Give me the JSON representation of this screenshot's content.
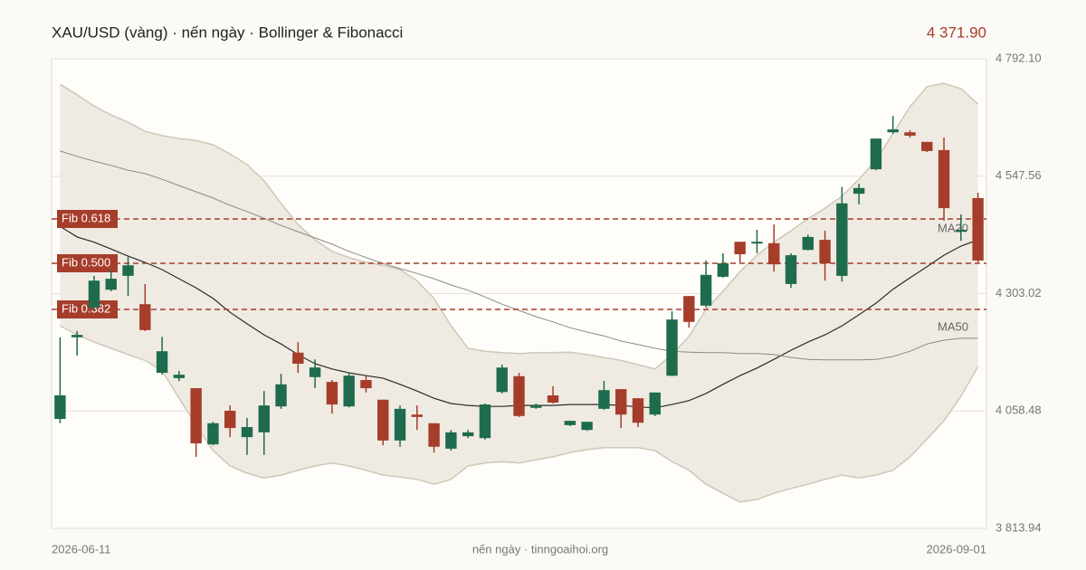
{
  "chart_data": {
    "type": "candlestick",
    "title": "XAU/USD (vàng) · nến ngày · Bollinger & Fibonacci",
    "last_price": "4 371.90",
    "footer": "nến ngày · tinngoaihoi.org",
    "categories": [
      "2026-06-11",
      null,
      null,
      null,
      null,
      null,
      null,
      null,
      null,
      null,
      null,
      null,
      null,
      null,
      null,
      null,
      null,
      null,
      null,
      null,
      null,
      null,
      null,
      null,
      null,
      null,
      null,
      null,
      null,
      null,
      null,
      null,
      null,
      null,
      null,
      null,
      null,
      null,
      null,
      null,
      null,
      null,
      null,
      null,
      null,
      null,
      null,
      null,
      null,
      null,
      null,
      null,
      null,
      null,
      "2026-09-01"
    ],
    "open": [
      4042,
      4212,
      4274,
      4311,
      4340,
      4281,
      4138,
      4127,
      4106,
      3989,
      4059,
      4004,
      4014,
      4068,
      4180,
      4129,
      4119,
      4068,
      4123,
      4082,
      3997,
      4051,
      4033,
      3980,
      4006,
      4002,
      4098,
      4131,
      4065,
      4091,
      4029,
      4019,
      4063,
      4104,
      4085,
      4051,
      4132,
      4298,
      4278,
      4338,
      4411,
      4408,
      4408,
      4323,
      4394,
      4415,
      4340,
      4511,
      4562,
      4639,
      4639,
      4619,
      4602,
      4432,
      4502
    ],
    "close": [
      4091,
      4217,
      4330,
      4334,
      4362,
      4227,
      4183,
      4134,
      3991,
      4033,
      4023,
      4025,
      4070,
      4114,
      4157,
      4149,
      4072,
      4132,
      4106,
      3997,
      4063,
      4046,
      3984,
      4014,
      4014,
      4072,
      4149,
      4048,
      4070,
      4076,
      4038,
      4036,
      4102,
      4051,
      4034,
      4097,
      4249,
      4244,
      4342,
      4366,
      4385,
      4411,
      4364,
      4383,
      4421,
      4366,
      4491,
      4523,
      4626,
      4645,
      4632,
      4600,
      4481,
      4436,
      4371.9
    ],
    "high": [
      4212,
      4225,
      4340,
      4353,
      4379,
      4323,
      4213,
      4142,
      4106,
      4036,
      4070,
      4044,
      4100,
      4136,
      4202,
      4166,
      4123,
      4136,
      4131,
      4082,
      4070,
      4070,
      4033,
      4019,
      4019,
      4074,
      4155,
      4138,
      4074,
      4110,
      4038,
      4036,
      4121,
      4104,
      4085,
      4097,
      4266,
      4298,
      4372,
      4387,
      4411,
      4436,
      4447,
      4387,
      4426,
      4434,
      4525,
      4532,
      4626,
      4673,
      4643,
      4619,
      4628,
      4468,
      4513
    ],
    "low": [
      4033,
      4174,
      4268,
      4308,
      4298,
      4225,
      4134,
      4121,
      3963,
      3987,
      4004,
      3967,
      3967,
      4063,
      4138,
      4106,
      4053,
      4066,
      4097,
      3987,
      3984,
      4019,
      3972,
      3976,
      4002,
      3999,
      4095,
      4046,
      4063,
      4074,
      4027,
      4017,
      4061,
      4023,
      4025,
      4048,
      4131,
      4232,
      4274,
      4336,
      4368,
      4387,
      4349,
      4315,
      4393,
      4330,
      4328,
      4489,
      4560,
      4636,
      4628,
      4598,
      4455,
      4413,
      4368
    ],
    "up_color": "#1f6b4e",
    "down_color": "#a63d2a",
    "bollinger": {
      "color": "#cfc7b8",
      "upper": [
        4739,
        4717,
        4694,
        4675,
        4660,
        4641,
        4632,
        4626,
        4622,
        4613,
        4594,
        4572,
        4538,
        4491,
        4447,
        4415,
        4391,
        4378,
        4368,
        4362,
        4353,
        4330,
        4293,
        4236,
        4189,
        4183,
        4180,
        4178,
        4180,
        4180,
        4181,
        4176,
        4170,
        4164,
        4155,
        4146,
        4176,
        4214,
        4270,
        4308,
        4349,
        4383,
        4410,
        4434,
        4459,
        4481,
        4506,
        4541,
        4581,
        4636,
        4692,
        4734,
        4741,
        4730,
        4698
      ],
      "lower": [
        4236,
        4217,
        4202,
        4189,
        4176,
        4164,
        4142,
        4085,
        4029,
        3976,
        3944,
        3929,
        3919,
        3925,
        3935,
        3944,
        3950,
        3944,
        3935,
        3925,
        3921,
        3916,
        3906,
        3916,
        3944,
        3950,
        3953,
        3950,
        3957,
        3963,
        3972,
        3978,
        3982,
        3982,
        3982,
        3976,
        3953,
        3935,
        3906,
        3887,
        3869,
        3874,
        3887,
        3897,
        3906,
        3916,
        3925,
        3919,
        3925,
        3935,
        3963,
        4000,
        4038,
        4089,
        4151
      ]
    },
    "series": [
      {
        "name": "MA20",
        "color": "#2b2b2b",
        "values": [
          4443,
          4421,
          4410,
          4396,
          4381,
          4368,
          4353,
          4334,
          4315,
          4293,
          4264,
          4240,
          4217,
          4198,
          4176,
          4157,
          4146,
          4138,
          4132,
          4127,
          4114,
          4100,
          4085,
          4074,
          4070,
          4068,
          4068,
          4070,
          4070,
          4070,
          4072,
          4072,
          4072,
          4070,
          4067,
          4065,
          4072,
          4080,
          4095,
          4114,
          4132,
          4148,
          4166,
          4185,
          4202,
          4217,
          4236,
          4259,
          4283,
          4312,
          4336,
          4359,
          4383,
          4402,
          4415
        ]
      },
      {
        "name": "MA50",
        "color": "#8a8a86",
        "values": [
          4600,
          4589,
          4579,
          4570,
          4560,
          4553,
          4541,
          4528,
          4515,
          4502,
          4487,
          4474,
          4460,
          4445,
          4432,
          4419,
          4406,
          4391,
          4378,
          4366,
          4355,
          4345,
          4334,
          4321,
          4310,
          4296,
          4281,
          4268,
          4255,
          4244,
          4232,
          4223,
          4215,
          4204,
          4197,
          4189,
          4183,
          4181,
          4180,
          4180,
          4178,
          4178,
          4176,
          4170,
          4166,
          4165,
          4165,
          4165,
          4166,
          4172,
          4183,
          4198,
          4206,
          4210,
          4210
        ]
      }
    ],
    "fib_levels": [
      {
        "label": "Fib 0.618",
        "value": 4458.5
      },
      {
        "label": "Fib 0.500",
        "value": 4366.2
      },
      {
        "label": "Fib 0.382",
        "value": 4270.0
      }
    ],
    "fib_color": "#a63d2a",
    "ylim": [
      3813.94,
      4792.1
    ],
    "yticks": [
      {
        "value": 4792.1,
        "label": "4 792.10"
      },
      {
        "value": 4547.56,
        "label": "4 547.56"
      },
      {
        "value": 4303.02,
        "label": "4 303.02"
      },
      {
        "value": 4058.48,
        "label": "4 058.48"
      },
      {
        "value": 3813.94,
        "label": "3 813.94"
      }
    ],
    "grid": true
  }
}
